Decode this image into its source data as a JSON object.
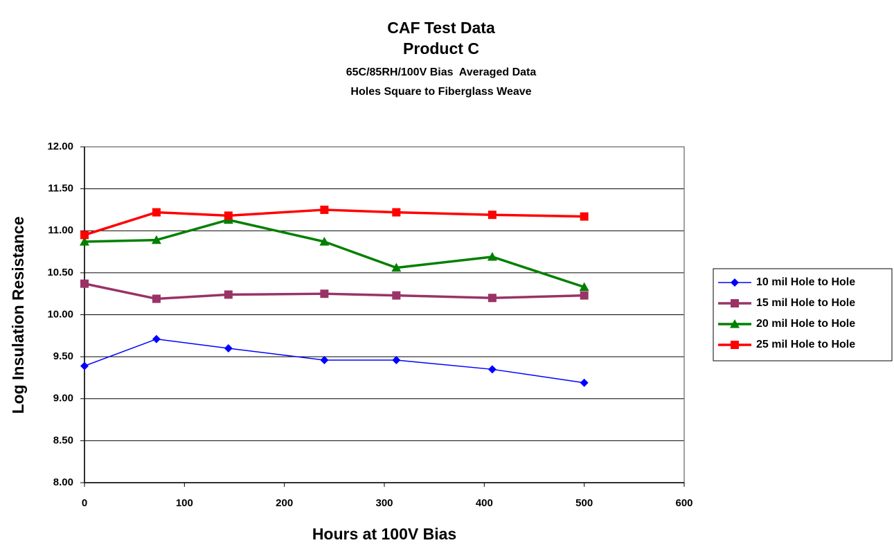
{
  "chart_data": {
    "type": "line",
    "title": [
      "CAF Test Data",
      "Product C"
    ],
    "subtitle": [
      "65C/85RH/100V Bias  Averaged Data",
      "Holes Square to Fiberglass Weave"
    ],
    "x_label": "Hours at 100V Bias",
    "y_label": "Log Insulation Resistance",
    "x": [
      0,
      72,
      144,
      240,
      312,
      408,
      500
    ],
    "series": [
      {
        "name": "10 mil Hole to Hole",
        "color": "#0000ff",
        "marker": "diamond",
        "line_width": 1.5,
        "values": [
          9.39,
          9.71,
          9.6,
          9.46,
          9.46,
          9.35,
          9.19
        ]
      },
      {
        "name": "15 mil Hole to Hole",
        "color": "#993366",
        "marker": "square",
        "line_width": 3.5,
        "values": [
          10.37,
          10.19,
          10.24,
          10.25,
          10.23,
          10.2,
          10.23
        ]
      },
      {
        "name": "20 mil Hole to Hole",
        "color": "#008000",
        "marker": "triangle",
        "line_width": 3.5,
        "values": [
          10.87,
          10.89,
          11.13,
          10.87,
          10.56,
          10.69,
          10.33
        ]
      },
      {
        "name": "25 mil Hole to Hole",
        "color": "#ff0000",
        "marker": "square",
        "line_width": 3.5,
        "values": [
          10.95,
          11.22,
          11.18,
          11.25,
          11.22,
          11.19,
          11.17
        ]
      }
    ],
    "xlim": [
      0,
      600
    ],
    "xticks": [
      0,
      100,
      200,
      300,
      400,
      500,
      600
    ],
    "ylim": [
      8,
      12
    ],
    "yticks": [
      {
        "value": 8,
        "label": "8.00"
      },
      {
        "value": 8.5,
        "label": "8.50"
      },
      {
        "value": 9,
        "label": "9.00"
      },
      {
        "value": 9.5,
        "label": "9.50"
      },
      {
        "value": 10,
        "label": "10.00"
      },
      {
        "value": 10.5,
        "label": "10.50"
      },
      {
        "value": 11,
        "label": "11.00"
      },
      {
        "value": 11.5,
        "label": "11.50"
      },
      {
        "value": 12,
        "label": "12.00"
      }
    ],
    "grid": true,
    "legend": "right"
  }
}
